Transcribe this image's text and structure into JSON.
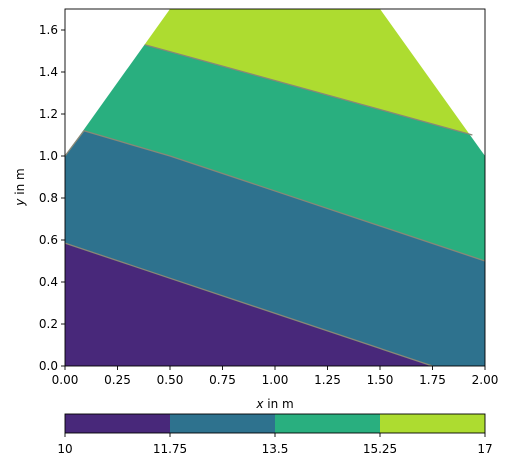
{
  "chart_data": {
    "type": "contourf",
    "xlabel": {
      "var": "x",
      "rest": " in m"
    },
    "ylabel": {
      "var": "y",
      "rest": " in m"
    },
    "xlim": [
      0,
      2
    ],
    "ylim": [
      0,
      1.7
    ],
    "x_ticks": [
      "0.00",
      "0.25",
      "0.50",
      "0.75",
      "1.00",
      "1.25",
      "1.50",
      "1.75",
      "2.00"
    ],
    "y_ticks": [
      "0.0",
      "0.2",
      "0.4",
      "0.6",
      "0.8",
      "1.0",
      "1.2",
      "1.4",
      "1.6"
    ],
    "domain_polygon": [
      [
        0,
        0
      ],
      [
        2,
        0
      ],
      [
        2,
        1.0
      ],
      [
        1.5,
        1.7
      ],
      [
        0.5,
        1.7
      ],
      [
        0,
        1.0
      ]
    ],
    "levels": [
      10,
      11.75,
      13.5,
      15.25,
      17
    ],
    "level_labels": [
      "10",
      "11.75",
      "13.5",
      "15.25",
      "17"
    ],
    "band_colors": [
      "#48287a",
      "#2e728e",
      "#29af7f",
      "#addc30"
    ],
    "contour_line_color": "#888877",
    "contours": [
      {
        "level": 11.75,
        "points": [
          [
            0,
            0.585
          ],
          [
            1.75,
            0.0
          ]
        ]
      },
      {
        "level": 13.5,
        "points": [
          [
            0,
            1.0
          ],
          [
            0.09,
            1.12
          ],
          [
            0.5,
            1.0
          ],
          [
            2.0,
            0.5
          ]
        ]
      },
      {
        "level": 15.25,
        "points": [
          [
            0.38,
            1.53
          ],
          [
            1.94,
            1.1
          ]
        ]
      }
    ],
    "colorbar": {
      "orientation": "horizontal",
      "position": "bottom"
    }
  }
}
